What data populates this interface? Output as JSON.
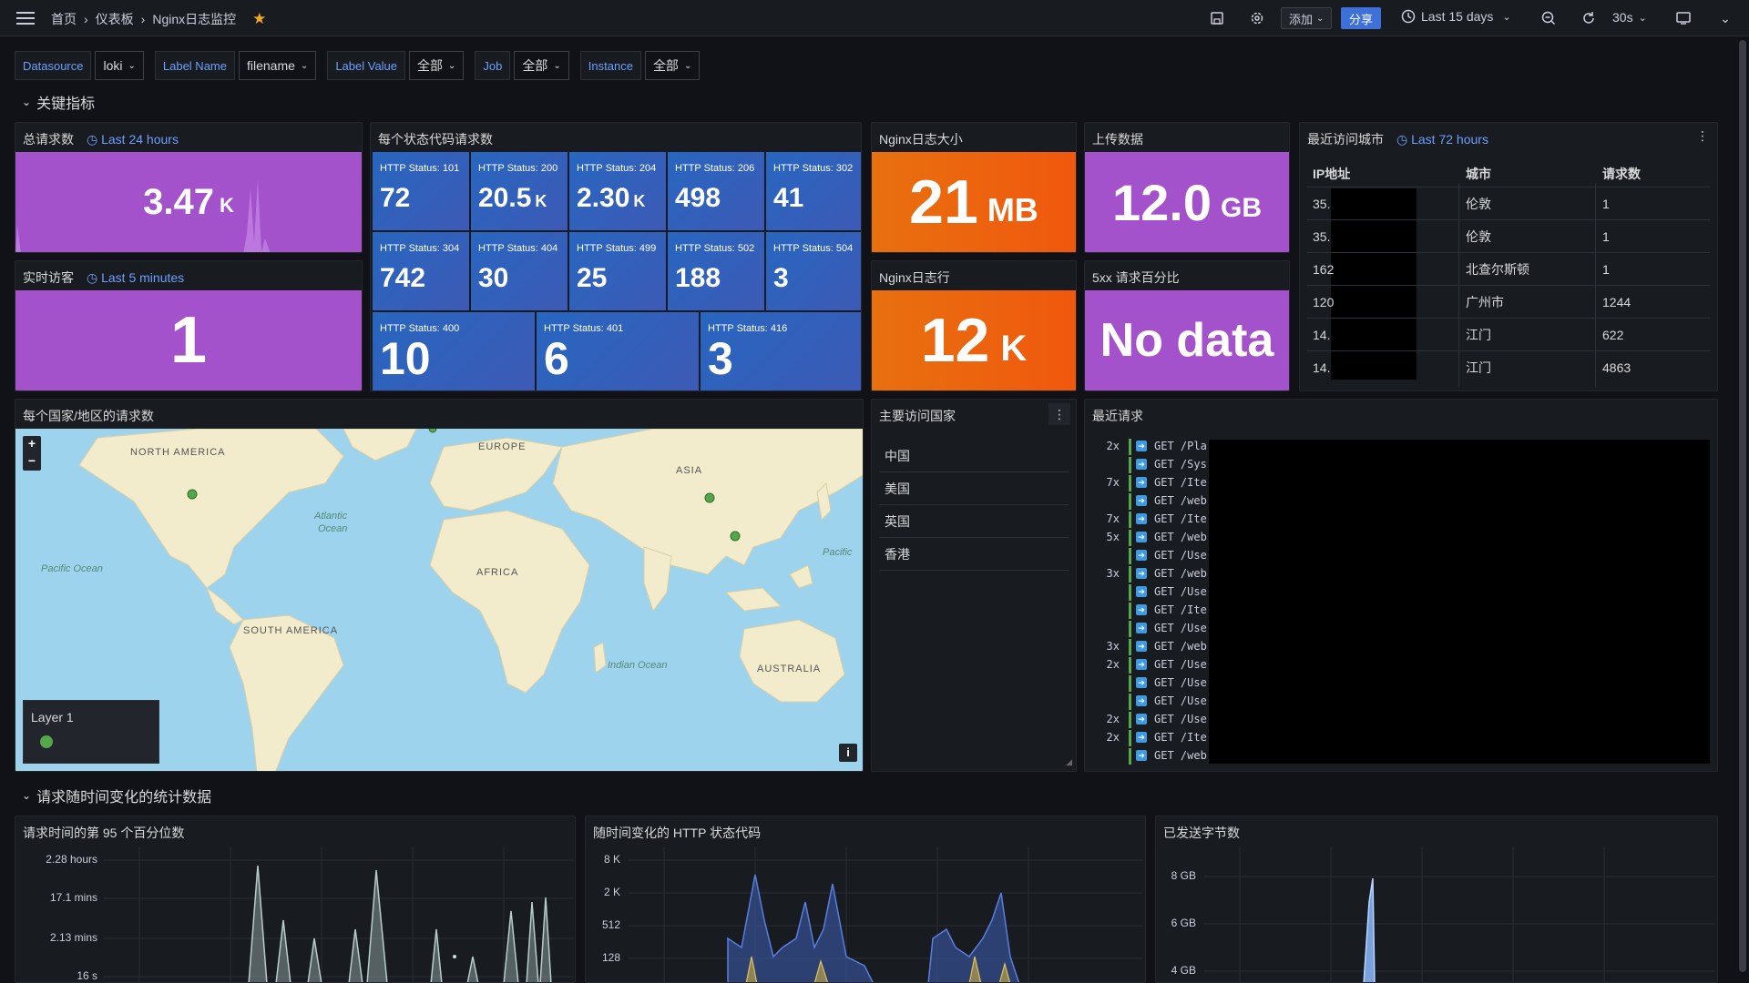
{
  "header": {
    "breadcrumb": [
      "首页",
      "仪表板",
      "Nginx日志监控"
    ],
    "add_label": "添加",
    "share_label": "分享",
    "time_range": "Last 15 days",
    "refresh_interval": "30s"
  },
  "variables": [
    {
      "label": "Datasource",
      "value": "loki"
    },
    {
      "label": "Label Name",
      "value": "filename"
    },
    {
      "label": "Label Value",
      "value": "全部"
    },
    {
      "label": "Job",
      "value": "全部"
    },
    {
      "label": "Instance",
      "value": "全部"
    }
  ],
  "rows": {
    "key_metrics": "关键指标",
    "time_stats": "请求随时间变化的统计数据"
  },
  "panels": {
    "total_requests": {
      "title": "总请求数",
      "time": "Last 24 hours",
      "value": "3.47",
      "unit": "K"
    },
    "live_visitors": {
      "title": "实时访客",
      "time": "Last 5 minutes",
      "value": "1"
    },
    "status_codes": {
      "title": "每个状态代码请求数",
      "tiles": [
        {
          "label": "HTTP Status: 101",
          "value": "72",
          "unit": ""
        },
        {
          "label": "HTTP Status: 200",
          "value": "20.5",
          "unit": "K"
        },
        {
          "label": "HTTP Status: 204",
          "value": "2.30",
          "unit": "K"
        },
        {
          "label": "HTTP Status: 206",
          "value": "498",
          "unit": ""
        },
        {
          "label": "HTTP Status: 302",
          "value": "41",
          "unit": ""
        },
        {
          "label": "HTTP Status: 304",
          "value": "742",
          "unit": ""
        },
        {
          "label": "HTTP Status: 404",
          "value": "30",
          "unit": ""
        },
        {
          "label": "HTTP Status: 499",
          "value": "25",
          "unit": ""
        },
        {
          "label": "HTTP Status: 502",
          "value": "188",
          "unit": ""
        },
        {
          "label": "HTTP Status: 504",
          "value": "3",
          "unit": ""
        },
        {
          "label": "HTTP Status: 400",
          "value": "10",
          "unit": ""
        },
        {
          "label": "HTTP Status: 401",
          "value": "6",
          "unit": ""
        },
        {
          "label": "HTTP Status: 416",
          "value": "3",
          "unit": ""
        }
      ]
    },
    "log_size": {
      "title": "Nginx日志大小",
      "value": "21",
      "unit": "MB"
    },
    "upload": {
      "title": "上传数据",
      "value": "12.0",
      "unit": "GB"
    },
    "log_lines": {
      "title": "Nginx日志行",
      "value": "12",
      "unit": "K"
    },
    "error_pct": {
      "title": "5xx 请求百分比",
      "value": "No data"
    },
    "cities": {
      "title": "最近访问城市",
      "time": "Last 72 hours",
      "headers": [
        "IP地址",
        "城市",
        "请求数"
      ],
      "rows": [
        {
          "ip": "35.",
          "city": "伦敦",
          "count": "1"
        },
        {
          "ip": "35.",
          "city": "伦敦",
          "count": "1"
        },
        {
          "ip": "162",
          "city": "北查尔斯顿",
          "count": "1"
        },
        {
          "ip": "120",
          "city": "广州市",
          "count": "1244"
        },
        {
          "ip": "14.",
          "city": "江门",
          "count": "622"
        },
        {
          "ip": "14.",
          "city": "江门",
          "count": "4863"
        }
      ]
    },
    "map": {
      "title": "每个国家/地区的请求数",
      "labels": [
        "NORTH AMERICA",
        "EUROPE",
        "ASIA",
        "Atlantic",
        "Ocean",
        "Pacific Ocean",
        "AFRICA",
        "SOUTH AMERICA",
        "Indian Ocean",
        "AUSTRALIA",
        "Pacific"
      ],
      "legend": "Layer 1",
      "zoom_in": "+",
      "zoom_out": "−",
      "info": "i"
    },
    "countries": {
      "title": "主要访问国家",
      "items": [
        "中国",
        "美国",
        "英国",
        "香港"
      ]
    },
    "recent_requests": {
      "title": "最近请求",
      "lines": [
        {
          "count": "2x",
          "text": "GET /Pla"
        },
        {
          "count": "",
          "text": "GET /Sys"
        },
        {
          "count": "7x",
          "text": "GET /Ite"
        },
        {
          "count": "",
          "text": "GET /web"
        },
        {
          "count": "7x",
          "text": "GET /Ite"
        },
        {
          "count": "5x",
          "text": "GET /web"
        },
        {
          "count": "",
          "text": "GET /Use"
        },
        {
          "count": "3x",
          "text": "GET /web"
        },
        {
          "count": "",
          "text": "GET /Use"
        },
        {
          "count": "",
          "text": "GET /Ite"
        },
        {
          "count": "",
          "text": "GET /Use"
        },
        {
          "count": "3x",
          "text": "GET /web"
        },
        {
          "count": "2x",
          "text": "GET /Use"
        },
        {
          "count": "",
          "text": "GET /Use"
        },
        {
          "count": "",
          "text": "GET /Use"
        },
        {
          "count": "2x",
          "text": "GET /Use"
        },
        {
          "count": "2x",
          "text": "GET /Ite"
        },
        {
          "count": "",
          "text": "GET /web"
        }
      ]
    },
    "p95": {
      "title": "请求时间的第 95 个百分位数",
      "yticks": [
        "2.28 hours",
        "17.1 mins",
        "2.13 mins",
        "16 s"
      ]
    },
    "http_over_time": {
      "title": "随时间变化的 HTTP 状态代码",
      "yticks": [
        "8 K",
        "2 K",
        "512",
        "128"
      ]
    },
    "bytes_sent": {
      "title": "已发送字节数",
      "yticks": [
        "8 GB",
        "6 GB",
        "4 GB"
      ]
    }
  },
  "colors": {
    "purple": "#a352cc",
    "orange": "#f0580d",
    "blue": "#3274d9",
    "green": "#56a64b",
    "accent": "#6e9fff"
  }
}
